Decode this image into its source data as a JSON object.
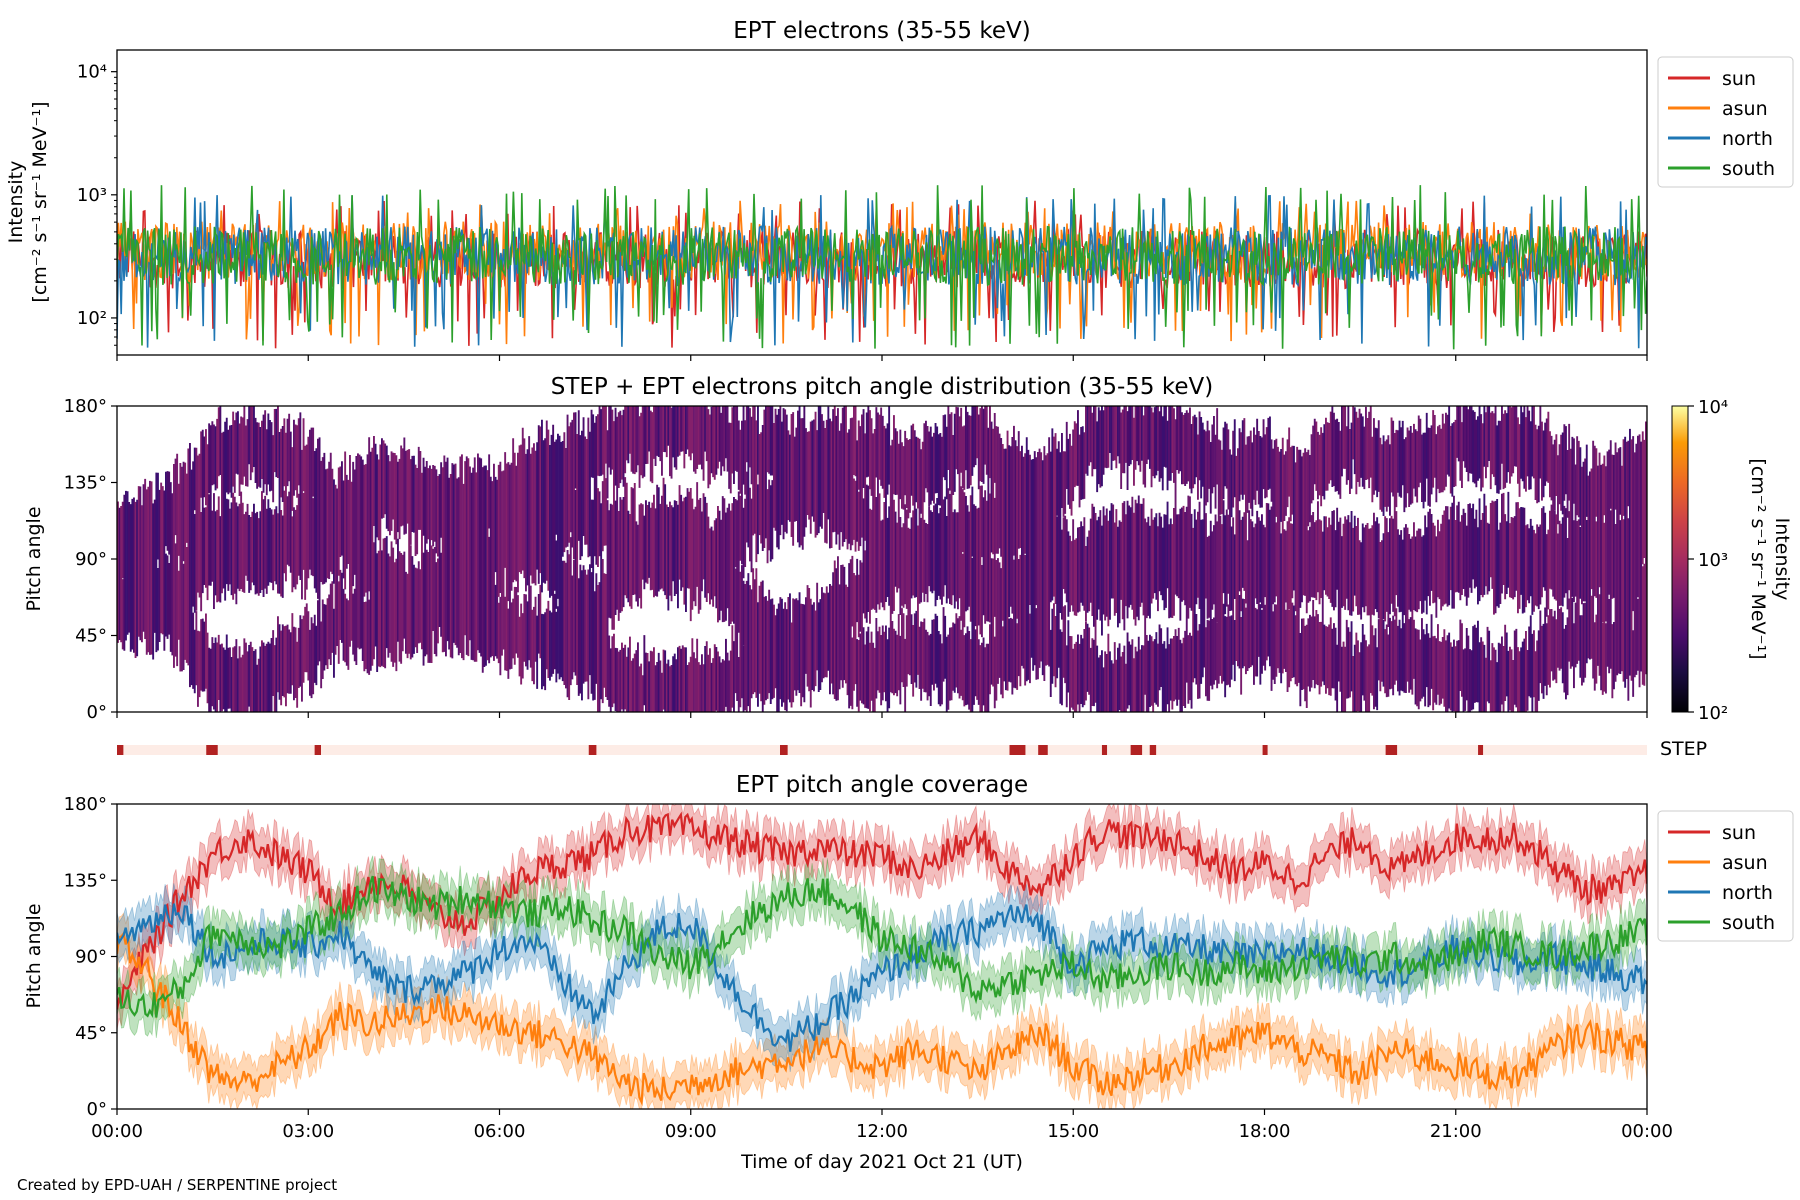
{
  "footer": {
    "credit": "Created by EPD-UAH / SERPENTINE project"
  },
  "chart_data": [
    {
      "type": "line",
      "title": "EPT electrons (35-55 keV)",
      "ylabel_line1": "Intensity",
      "ylabel_line2": "[cm⁻² s⁻¹ sr⁻¹ MeV⁻¹]",
      "yscale": "log",
      "ylim": [
        50,
        15000
      ],
      "yticks": [
        {
          "value": 100,
          "label": "10²"
        },
        {
          "value": 1000,
          "label": "10³"
        },
        {
          "value": 10000,
          "label": "10⁴"
        }
      ],
      "xlim": [
        "00:00",
        "24:00"
      ],
      "legend_placement": "outside-top-right",
      "series": [
        {
          "name": "sun",
          "color": "#d62728",
          "typical": 300,
          "range": [
            55,
            900
          ]
        },
        {
          "name": "asun",
          "color": "#ff7f0e",
          "typical": 350,
          "range": [
            60,
            900
          ]
        },
        {
          "name": "north",
          "color": "#1f77b4",
          "typical": 320,
          "range": [
            55,
            1000
          ]
        },
        {
          "name": "south",
          "color": "#2ca02c",
          "typical": 320,
          "range": [
            55,
            1200
          ]
        }
      ]
    },
    {
      "type": "heatmap",
      "title": "STEP + EPT electrons pitch angle distribution (35-55 keV)",
      "ylabel": "Pitch angle",
      "ylim": [
        0,
        180
      ],
      "yticks": [
        {
          "value": 0,
          "label": "0°"
        },
        {
          "value": 45,
          "label": "45°"
        },
        {
          "value": 90,
          "label": "90°"
        },
        {
          "value": 135,
          "label": "135°"
        },
        {
          "value": 180,
          "label": "180°"
        }
      ],
      "colorbar": {
        "label_line1": "Intensity",
        "label_line2": "[cm⁻² s⁻¹ sr⁻¹ MeV⁻¹]",
        "scale": "log",
        "range": [
          100,
          10000
        ],
        "ticks": [
          {
            "value": 100,
            "label": "10²"
          },
          {
            "value": 1000,
            "label": "10³"
          },
          {
            "value": 10000,
            "label": "10⁴"
          }
        ],
        "colormap": "inferno",
        "typical_intensity": 300
      }
    },
    {
      "type": "bar",
      "label": "STEP",
      "description_values_hours": [
        0.0,
        1.4,
        3.1,
        7.4,
        10.4,
        14.0,
        14.45,
        15.45,
        15.9,
        16.2,
        17.97,
        19.9,
        21.35
      ],
      "widths_hours": [
        0.1,
        0.18,
        0.1,
        0.12,
        0.12,
        0.25,
        0.15,
        0.08,
        0.18,
        0.1,
        0.06,
        0.18,
        0.06
      ],
      "bar_color": "#b22222",
      "background_color": "#fdece6"
    },
    {
      "type": "line",
      "title": "EPT pitch angle coverage",
      "ylabel": "Pitch angle",
      "xlabel": "Time of day 2021 Oct 21 (UT)",
      "ylim": [
        0,
        180
      ],
      "yticks": [
        {
          "value": 0,
          "label": "0°"
        },
        {
          "value": 45,
          "label": "45°"
        },
        {
          "value": 90,
          "label": "90°"
        },
        {
          "value": 135,
          "label": "135°"
        },
        {
          "value": 180,
          "label": "180°"
        }
      ],
      "x": [
        0,
        0.5,
        1,
        1.5,
        2,
        2.5,
        3,
        3.5,
        4,
        4.5,
        5,
        5.5,
        6,
        6.5,
        7,
        7.5,
        8,
        8.5,
        9,
        9.5,
        10,
        10.5,
        11,
        11.5,
        12,
        12.5,
        13,
        13.5,
        14,
        14.5,
        15,
        15.5,
        16,
        16.5,
        17,
        17.5,
        18,
        18.5,
        19,
        19.5,
        20,
        20.5,
        21,
        21.5,
        22,
        22.5,
        23,
        23.5,
        24
      ],
      "xticks": [
        {
          "value": 0,
          "label": "00:00"
        },
        {
          "value": 3,
          "label": "03:00"
        },
        {
          "value": 6,
          "label": "06:00"
        },
        {
          "value": 9,
          "label": "09:00"
        },
        {
          "value": 12,
          "label": "12:00"
        },
        {
          "value": 15,
          "label": "15:00"
        },
        {
          "value": 18,
          "label": "18:00"
        },
        {
          "value": 21,
          "label": "21:00"
        },
        {
          "value": 24,
          "label": "00:00"
        }
      ],
      "legend_placement": "outside-top-right",
      "band_halfwidth_deg": 12,
      "series": [
        {
          "name": "sun",
          "color": "#d62728",
          "values": [
            60,
            95,
            125,
            150,
            160,
            150,
            140,
            120,
            135,
            130,
            115,
            110,
            125,
            140,
            145,
            150,
            165,
            165,
            165,
            160,
            155,
            150,
            155,
            150,
            150,
            140,
            150,
            160,
            140,
            130,
            150,
            165,
            160,
            160,
            150,
            140,
            145,
            135,
            150,
            160,
            140,
            150,
            160,
            160,
            160,
            145,
            130,
            130,
            140
          ]
        },
        {
          "name": "asun",
          "color": "#ff7f0e",
          "values": [
            100,
            80,
            50,
            20,
            15,
            25,
            35,
            55,
            50,
            55,
            60,
            55,
            50,
            45,
            40,
            30,
            15,
            10,
            15,
            20,
            25,
            30,
            35,
            30,
            25,
            35,
            30,
            20,
            35,
            45,
            25,
            15,
            20,
            25,
            35,
            40,
            45,
            35,
            30,
            20,
            35,
            30,
            25,
            20,
            20,
            35,
            45,
            40,
            35
          ]
        },
        {
          "name": "north",
          "color": "#1f77b4",
          "values": [
            100,
            110,
            120,
            90,
            95,
            100,
            95,
            105,
            80,
            70,
            75,
            80,
            95,
            100,
            75,
            55,
            85,
            105,
            110,
            80,
            55,
            40,
            50,
            65,
            80,
            90,
            100,
            105,
            115,
            110,
            85,
            95,
            100,
            95,
            95,
            90,
            90,
            95,
            90,
            85,
            80,
            85,
            95,
            90,
            85,
            90,
            85,
            80,
            75
          ]
        },
        {
          "name": "south",
          "color": "#2ca02c",
          "values": [
            65,
            60,
            70,
            105,
            100,
            95,
            105,
            115,
            130,
            125,
            120,
            125,
            120,
            115,
            120,
            110,
            105,
            90,
            85,
            100,
            115,
            125,
            130,
            120,
            100,
            95,
            85,
            70,
            75,
            80,
            85,
            75,
            80,
            85,
            80,
            85,
            80,
            85,
            90,
            85,
            90,
            85,
            90,
            100,
            95,
            90,
            95,
            100,
            105
          ]
        }
      ]
    }
  ]
}
